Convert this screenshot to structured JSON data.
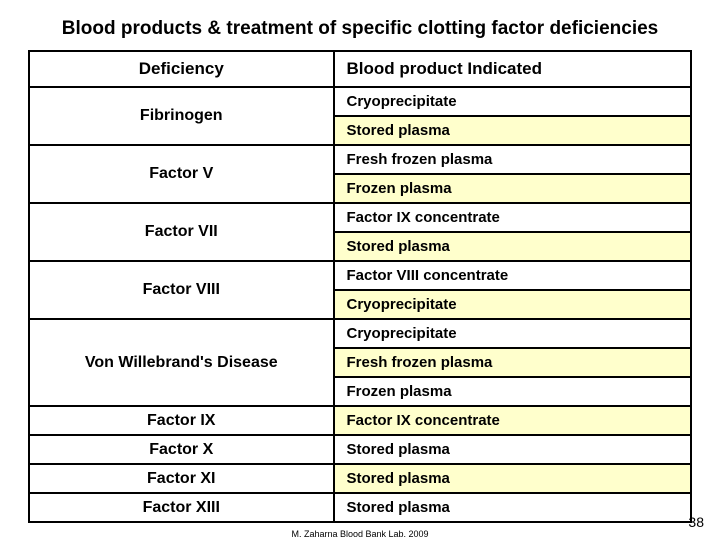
{
  "title": "Blood products & treatment of specific clotting factor deficiencies",
  "header": {
    "left": "Deficiency",
    "right": "Blood product Indicated"
  },
  "colors": {
    "alt1": "#ffffff",
    "alt2": "#ffffcc"
  },
  "rows": [
    {
      "deficiency": "Fibrinogen",
      "products": [
        "Cryoprecipitate",
        "Stored plasma"
      ]
    },
    {
      "deficiency": "Factor V",
      "products": [
        "Fresh frozen plasma",
        "Frozen plasma"
      ]
    },
    {
      "deficiency": "Factor VII",
      "products": [
        "Factor IX concentrate",
        "Stored plasma"
      ]
    },
    {
      "deficiency": "Factor VIII",
      "products": [
        "Factor VIII concentrate",
        "Cryoprecipitate"
      ]
    },
    {
      "deficiency": "Von Willebrand's Disease",
      "products": [
        "Cryoprecipitate",
        "Fresh frozen plasma",
        "Frozen plasma"
      ]
    },
    {
      "deficiency": "Factor IX",
      "products": [
        "Factor IX concentrate"
      ]
    },
    {
      "deficiency": "Factor X",
      "products": [
        "Stored plasma"
      ]
    },
    {
      "deficiency": "Factor XI",
      "products": [
        "Stored plasma"
      ]
    },
    {
      "deficiency": "Factor XIII",
      "products": [
        "Stored plasma"
      ]
    }
  ],
  "footer": "M. Zaharna Blood Bank Lab. 2009",
  "page_number": "38"
}
